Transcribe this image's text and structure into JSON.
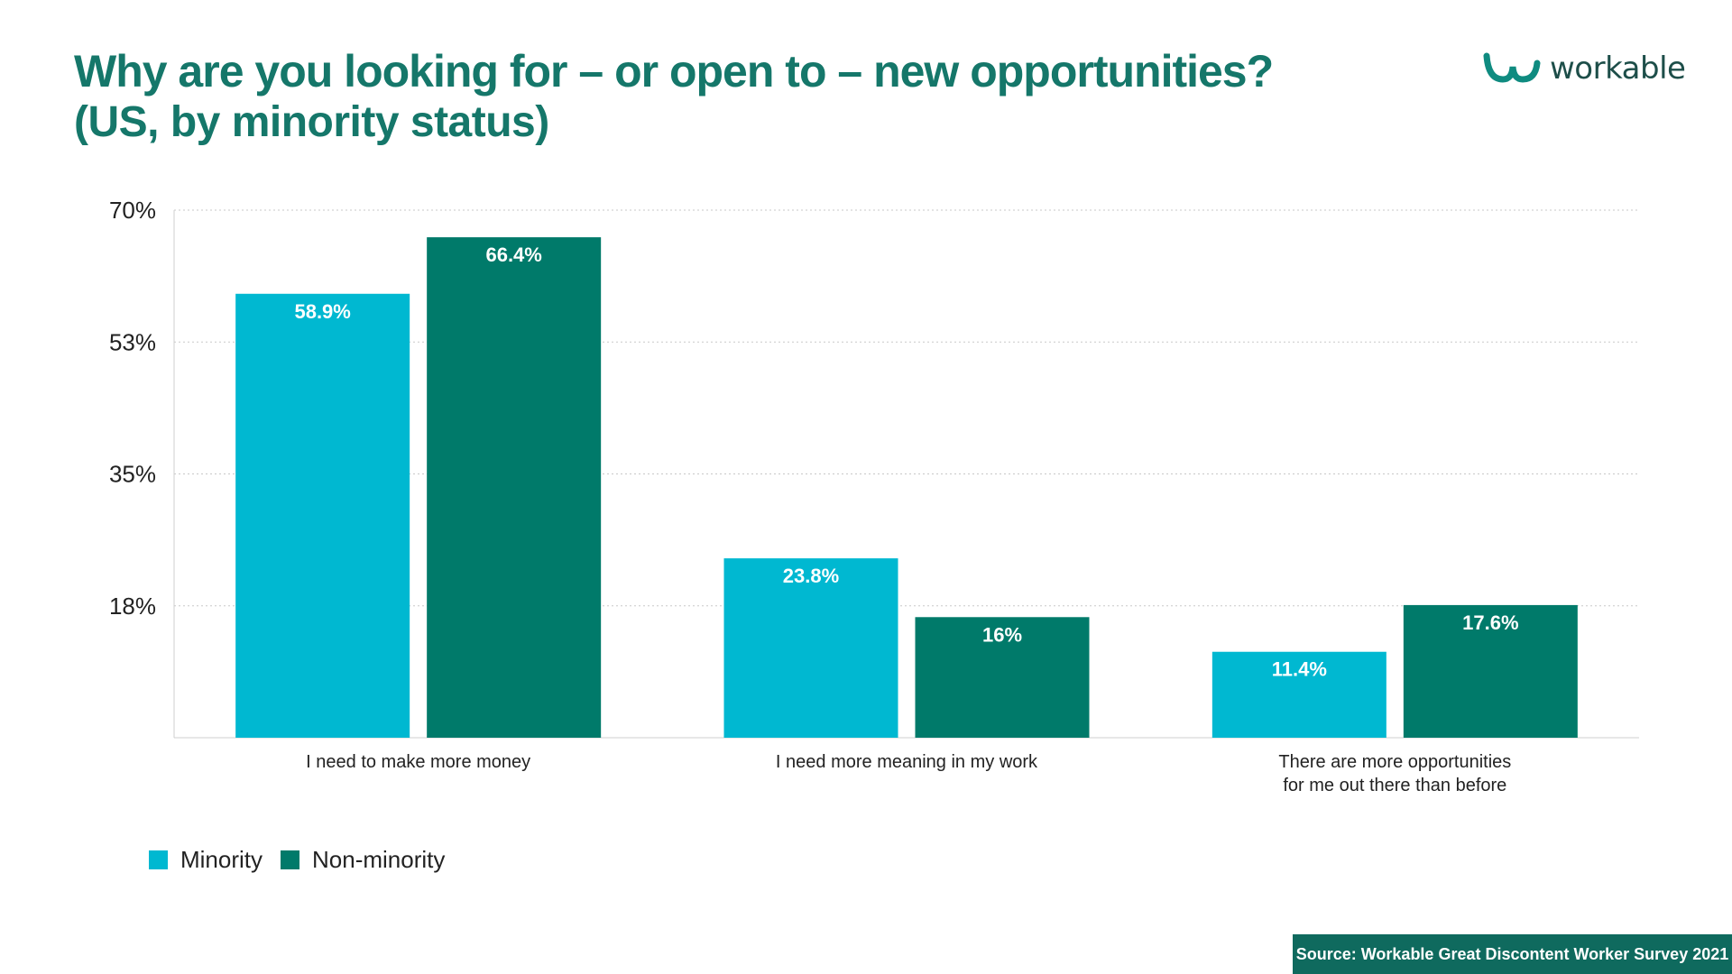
{
  "header": {
    "title": "Why are you looking for – or open to – new opportunities?",
    "subtitle": "(US, by minority status)",
    "logo_text": "workable",
    "logo_icon": "workable-w-icon"
  },
  "source": "Source: Workable Great Discontent Worker Survey 2021",
  "colors": {
    "minority": "#00b8d1",
    "non_minority": "#007a6a",
    "title": "#15776a",
    "grid": "#c8c8c8"
  },
  "legend": {
    "items": [
      "Minority",
      "Non-minority"
    ]
  },
  "chart_data": {
    "type": "bar",
    "title": "Why are you looking for – or open to – new opportunities?",
    "subtitle": "(US, by minority status)",
    "categories": [
      [
        "I need to make more money"
      ],
      [
        "I need more meaning in my work"
      ],
      [
        "There are more opportunities",
        "for me out there than before"
      ]
    ],
    "series": [
      {
        "name": "Minority",
        "values": [
          58.9,
          23.8,
          11.4
        ],
        "labels": [
          "58.9%",
          "23.8%",
          "11.4%"
        ],
        "color": "#00b8d1"
      },
      {
        "name": "Non-minority",
        "values": [
          66.4,
          16,
          17.6
        ],
        "labels": [
          "66.4%",
          "16%",
          "17.6%"
        ],
        "color": "#007a6a"
      }
    ],
    "yticks": [
      {
        "value": 17.5,
        "label": "18%"
      },
      {
        "value": 35,
        "label": "35%"
      },
      {
        "value": 52.5,
        "label": "53%"
      },
      {
        "value": 70,
        "label": "70%"
      }
    ],
    "ylim": [
      0,
      70
    ],
    "xlabel": "",
    "ylabel": "",
    "grid": true,
    "legend_position": "bottom-left"
  }
}
